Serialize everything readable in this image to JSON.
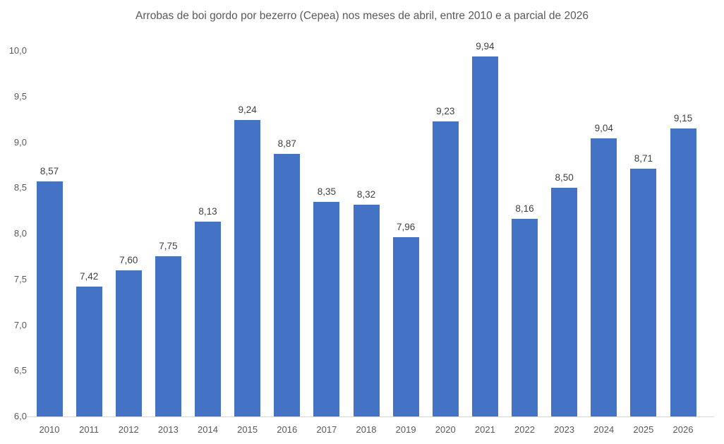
{
  "chart_data": {
    "type": "bar",
    "title": "Arrobas de boi gordo por bezerro (Cepea) nos meses de abril, entre 2010 e a parcial de 2026",
    "categories": [
      "2010",
      "2011",
      "2012",
      "2013",
      "2014",
      "2015",
      "2016",
      "2017",
      "2018",
      "2019",
      "2020",
      "2021",
      "2022",
      "2023",
      "2024",
      "2025",
      "2026"
    ],
    "values": [
      8.57,
      7.42,
      7.6,
      7.75,
      8.13,
      9.24,
      8.87,
      8.35,
      8.32,
      7.96,
      9.23,
      9.94,
      8.16,
      8.5,
      9.04,
      8.71,
      9.15
    ],
    "value_labels": [
      "8,57",
      "7,42",
      "7,60",
      "7,75",
      "8,13",
      "9,24",
      "8,87",
      "8,35",
      "8,32",
      "7,96",
      "9,23",
      "9,94",
      "8,16",
      "8,50",
      "9,04",
      "8,71",
      "9,15"
    ],
    "xlabel": "",
    "ylabel": "",
    "ylim": [
      6.0,
      10.0
    ],
    "yticks": {
      "labels": [
        "10,0",
        "9,5",
        "9,0",
        "8,5",
        "8,0",
        "7,5",
        "7,0",
        "6,5",
        "6,0"
      ],
      "values": [
        10.0,
        9.5,
        9.0,
        8.5,
        8.0,
        7.5,
        7.0,
        6.5,
        6.0
      ]
    },
    "grid": false,
    "legend": "none",
    "decimal_separator": ",",
    "colors": {
      "bar": "#4472C4",
      "data_label": "#404040",
      "axis_text": "#595959",
      "axis_line": "#D9D9D9",
      "background": "#FFFFFF"
    }
  }
}
